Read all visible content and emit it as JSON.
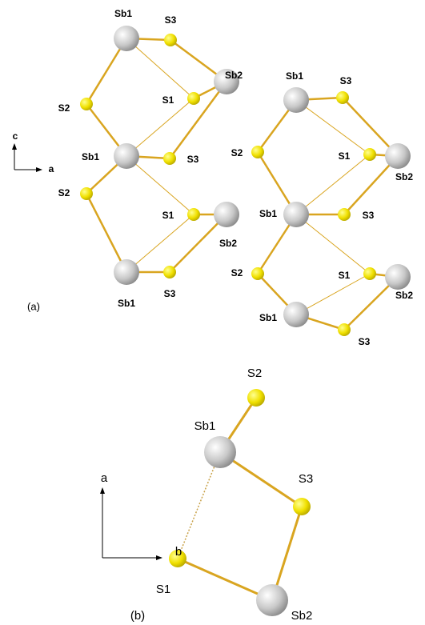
{
  "panel_a": {
    "label": "(a)",
    "axes": {
      "vertical": "c",
      "horizontal": "a"
    },
    "left_labels": [
      "Sb1",
      "S3",
      "Sb2",
      "S2",
      "S1",
      "Sb1",
      "S3",
      "S2",
      "S1",
      "Sb2",
      "Sb1",
      "S3"
    ],
    "right_labels": [
      "Sb1",
      "S3",
      "S2",
      "S1",
      "Sb2",
      "Sb1",
      "S3",
      "S2",
      "S1",
      "Sb2",
      "Sb1",
      "S3"
    ]
  },
  "panel_b": {
    "label": "(b)",
    "axes": {
      "vertical": "a",
      "horizontal": "b"
    },
    "labels": [
      "S2",
      "Sb1",
      "S3",
      "S1",
      "Sb2"
    ]
  }
}
